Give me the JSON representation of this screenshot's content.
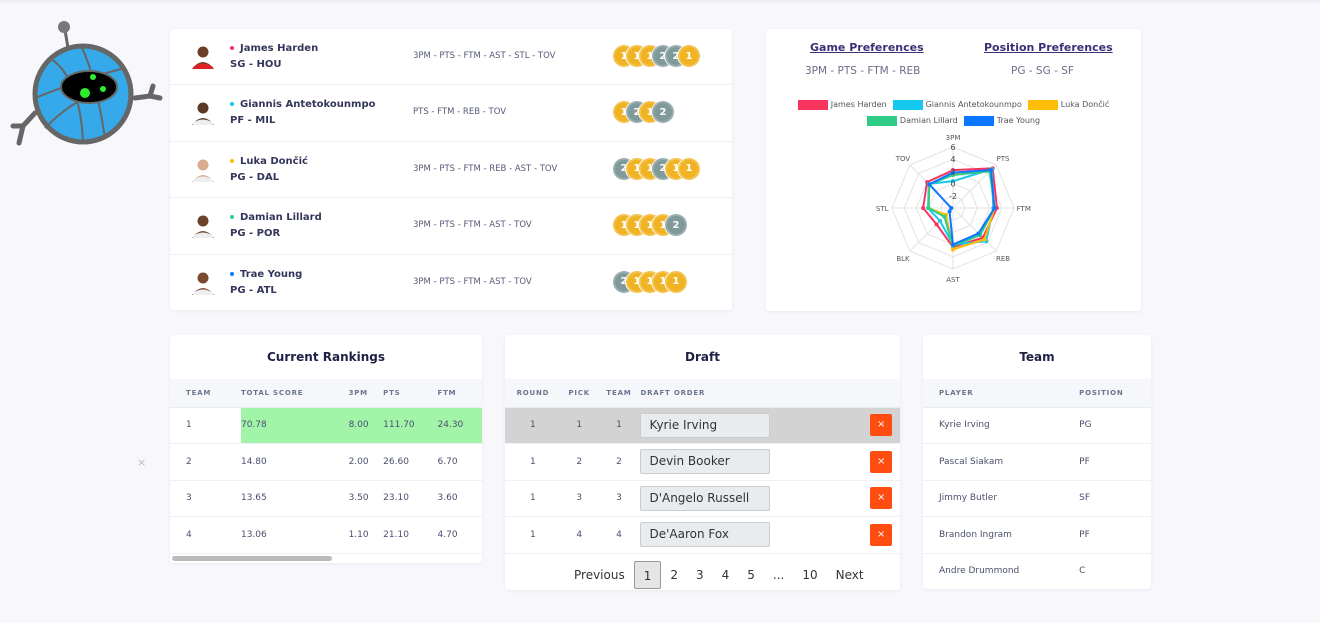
{
  "players": [
    {
      "name": "James Harden",
      "pos": "SG - HOU",
      "color": "#f7345e",
      "cats": "3PM - PTS - FTM - AST - STL - TOV",
      "medals": [
        1,
        1,
        1,
        2,
        2,
        1
      ],
      "skin": "#6b3e26"
    },
    {
      "name": "Giannis Antetokounmpo",
      "pos": "PF - MIL",
      "color": "#15c9ee",
      "cats": "PTS - FTM - REB - TOV",
      "medals": [
        1,
        2,
        1,
        2
      ],
      "skin": "#5a3a26"
    },
    {
      "name": "Luka Dončić",
      "pos": "PG - DAL",
      "color": "#ffbd07",
      "cats": "3PM - PTS - FTM - REB - AST - TOV",
      "medals": [
        2,
        1,
        1,
        2,
        1,
        1
      ],
      "skin": "#d8ad8e"
    },
    {
      "name": "Damian Lillard",
      "pos": "PG - POR",
      "color": "#2ecc87",
      "cats": "3PM - PTS - FTM - AST - TOV",
      "medals": [
        1,
        1,
        1,
        1,
        2
      ],
      "skin": "#6b4128"
    },
    {
      "name": "Trae Young",
      "pos": "PG - ATL",
      "color": "#0b77ff",
      "cats": "3PM - PTS - FTM - AST - TOV",
      "medals": [
        2,
        1,
        1,
        1,
        1
      ],
      "skin": "#7a4a30"
    }
  ],
  "prefs": {
    "game_title": "Game Preferences",
    "game_value": "3PM - PTS - FTM - REB",
    "pos_title": "Position Preferences",
    "pos_value": "PG - SG - SF"
  },
  "chart_data": {
    "type": "radar",
    "axes": [
      "3PM",
      "PTS",
      "FTM",
      "REB",
      "AST",
      "BLK",
      "STL",
      "TOV"
    ],
    "ticks": [
      -2,
      0,
      2,
      4,
      6
    ],
    "range": [
      -4,
      6
    ],
    "series": [
      {
        "name": "James Harden",
        "color": "#f7345e",
        "values": [
          2.2,
          5.2,
          3.2,
          2.9,
          2.4,
          -0.2,
          0.9,
          2.0
        ]
      },
      {
        "name": "Giannis Antetokounmpo",
        "color": "#15c9ee",
        "values": [
          0.4,
          5.0,
          2.6,
          3.7,
          2.0,
          -1.0,
          0.1,
          1.6
        ]
      },
      {
        "name": "Luka Dončić",
        "color": "#ffbd07",
        "values": [
          1.6,
          4.6,
          2.8,
          3.3,
          2.8,
          -2.4,
          0.0,
          1.5
        ]
      },
      {
        "name": "Damian Lillard",
        "color": "#2ecc87",
        "values": [
          1.4,
          4.5,
          2.8,
          2.3,
          2.2,
          -2.0,
          0.0,
          1.5
        ]
      },
      {
        "name": "Trae Young",
        "color": "#0b77ff",
        "values": [
          1.8,
          4.8,
          2.8,
          1.9,
          2.0,
          -3.2,
          -3.7,
          1.5
        ]
      }
    ]
  },
  "rankings": {
    "title": "Current Rankings",
    "headers": [
      "TEAM",
      "TOTAL SCORE",
      "3PM",
      "PTS",
      "FTM"
    ],
    "rows": [
      [
        "1",
        "70.78",
        "8.00",
        "111.70",
        "24.30"
      ],
      [
        "2",
        "14.80",
        "2.00",
        "26.60",
        "6.70"
      ],
      [
        "3",
        "13.65",
        "3.50",
        "23.10",
        "3.60"
      ],
      [
        "4",
        "13.06",
        "1.10",
        "21.10",
        "4.70"
      ]
    ]
  },
  "draft": {
    "title": "Draft",
    "headers": [
      "ROUND",
      "PICK",
      "TEAM",
      "DRAFT ORDER"
    ],
    "rows": [
      [
        "1",
        "1",
        "1",
        "Kyrie Irving"
      ],
      [
        "1",
        "2",
        "2",
        "Devin Booker"
      ],
      [
        "1",
        "3",
        "3",
        "D'Angelo Russell"
      ],
      [
        "1",
        "4",
        "4",
        "De'Aaron Fox"
      ]
    ],
    "remove": "×",
    "pager": [
      "Previous",
      "1",
      "2",
      "3",
      "4",
      "5",
      "...",
      "10",
      "Next"
    ]
  },
  "team": {
    "title": "Team",
    "headers": [
      "PLAYER",
      "POSITION"
    ],
    "rows": [
      [
        "Kyrie Irving",
        "PG"
      ],
      [
        "Pascal Siakam",
        "PF"
      ],
      [
        "Jimmy Butler",
        "SF"
      ],
      [
        "Brandon Ingram",
        "PF"
      ],
      [
        "Andre Drummond",
        "C"
      ]
    ]
  },
  "misc": {
    "close": "×"
  }
}
